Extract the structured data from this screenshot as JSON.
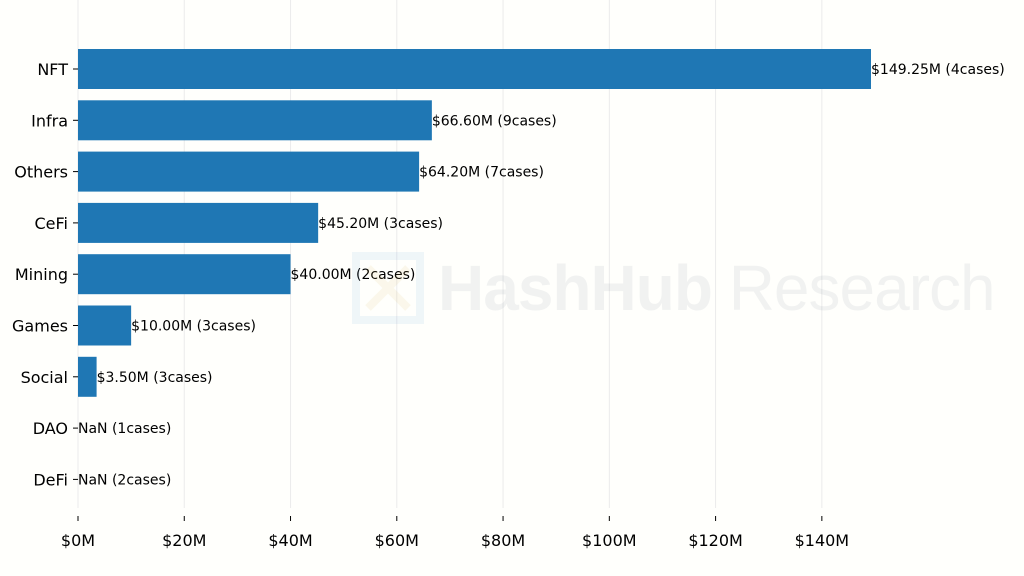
{
  "chart_data": {
    "type": "bar",
    "orientation": "horizontal",
    "categories": [
      "NFT",
      "Infra",
      "Others",
      "CeFi",
      "Mining",
      "Games",
      "Social",
      "DAO",
      "DeFi"
    ],
    "values": [
      149.25,
      66.6,
      64.2,
      45.2,
      40.0,
      10.0,
      3.5,
      null,
      null
    ],
    "data_labels": [
      "$149.25M (4cases)",
      "$66.60M (9cases)",
      "$64.20M (7cases)",
      "$45.20M (3cases)",
      "$40.00M (2cases)",
      "$10.00M (3cases)",
      "$3.50M (3cases)",
      "NaN (1cases)",
      "NaN (2cases)"
    ],
    "x_ticks": [
      "$0M",
      "$20M",
      "$40M",
      "$60M",
      "$80M",
      "$100M",
      "$120M",
      "$140M"
    ],
    "x_tick_values": [
      0,
      20,
      40,
      60,
      80,
      100,
      120,
      140
    ],
    "xlim": [
      0,
      149.25
    ],
    "title": "",
    "xlabel": "",
    "ylabel": "",
    "grid": "vertical",
    "legend": "none",
    "bar_color": "#1f77b4",
    "grid_color": "#ebebeb"
  },
  "watermark": {
    "bold_text": "HashHub",
    "light_text": " Research",
    "color": "#6a7a8a"
  }
}
